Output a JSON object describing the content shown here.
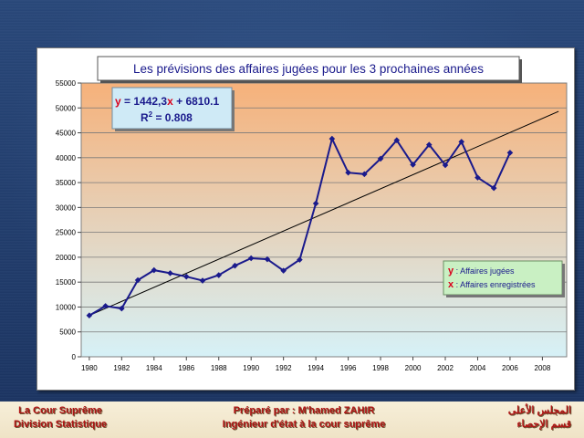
{
  "chart_data": {
    "type": "line",
    "title": "Les prévisions des affaires jugées pour les 3 prochaines années",
    "xlabel": "",
    "ylabel": "",
    "xlim": [
      1979.5,
      2009.5
    ],
    "ylim": [
      0,
      55000
    ],
    "x_ticks": [
      1980,
      1982,
      1984,
      1986,
      1988,
      1990,
      1992,
      1994,
      1996,
      1998,
      2000,
      2002,
      2004,
      2006,
      2008
    ],
    "y_ticks": [
      0,
      5000,
      10000,
      15000,
      20000,
      25000,
      30000,
      35000,
      40000,
      45000,
      50000,
      55000
    ],
    "grid": true,
    "x": [
      1980,
      1981,
      1982,
      1983,
      1984,
      1985,
      1986,
      1987,
      1988,
      1989,
      1990,
      1991,
      1992,
      1993,
      1994,
      1995,
      1996,
      1997,
      1998,
      1999,
      2000,
      2001,
      2002,
      2003,
      2004,
      2005,
      2006
    ],
    "series": [
      {
        "values": [
          8300,
          10200,
          9700,
          15400,
          17400,
          16800,
          16100,
          15300,
          16400,
          18300,
          19800,
          19600,
          17300,
          19500,
          30800,
          43800,
          37000,
          36700,
          39800,
          43500,
          38600,
          42600,
          38500,
          43200,
          36000,
          33900,
          41000
        ],
        "color": "#1a1a8c"
      }
    ],
    "trendline": {
      "x": [
        1980,
        2009
      ],
      "y": [
        8300,
        49300
      ],
      "color": "#000000"
    },
    "equation_box": {
      "y_label": "y",
      "equals": " = 1442,3",
      "x_label": "x",
      "rest": " + 6810.1",
      "r2_label": "R",
      "r2_exp": "2",
      "r2_value": " = 0.808"
    },
    "legend": {
      "placement": "lower-right",
      "entries": [
        {
          "key": "y",
          "text": " : Affaires jugées"
        },
        {
          "key": "x",
          "text": " : Affaires enregistrées"
        }
      ]
    },
    "colors": {
      "red": "#d9001b",
      "blue": "#1a1a8c",
      "grad_top": "#f6b17a",
      "grad_bottom": "#d6f1f7",
      "equation_bg": "#cfeaf6",
      "legend_bg": "#c9f0c3"
    }
  },
  "footer": {
    "left_line1": "La Cour Suprême",
    "left_line2": "Division Statistique",
    "mid_line1": "Préparé par : M'hamed ZAHIR",
    "mid_line2": "Ingénieur d'état à la cour suprême",
    "right_line1": "المجلس الأعلى",
    "right_line2": "قسم الإحصاء"
  }
}
